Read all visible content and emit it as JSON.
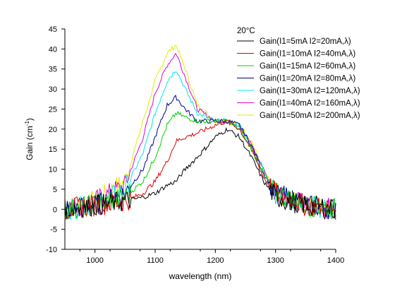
{
  "chart_data": {
    "type": "line",
    "title": "20°C",
    "xlabel": "wavelength (nm)",
    "ylabel": "Gain (cm",
    "ylabel_sup": "-1",
    "ylabel_end": ")",
    "xlim": [
      950,
      1400
    ],
    "ylim": [
      -10,
      45
    ],
    "xticks": [
      1000,
      1100,
      1200,
      1300,
      1400
    ],
    "xtick_labels": [
      "1000",
      "1100",
      "1200",
      "1300",
      "1400"
    ],
    "yticks": [
      -10,
      -5,
      0,
      5,
      10,
      15,
      20,
      25,
      30,
      35,
      40,
      45
    ],
    "ytick_labels": [
      "-10",
      "-5",
      "0",
      "5",
      "10",
      "15",
      "20",
      "25",
      "30",
      "35",
      "40",
      "45"
    ],
    "grid": false,
    "legend_position": "top-right",
    "x": [
      950,
      1000,
      1050,
      1080,
      1100,
      1120,
      1135,
      1150,
      1170,
      1200,
      1220,
      1240,
      1260,
      1280,
      1300,
      1350,
      1400
    ],
    "series": [
      {
        "name": "Gain(I1=5mA I2=20mA,λ)",
        "color": "#000000",
        "values": [
          0,
          1,
          2,
          3,
          4,
          6,
          7,
          10,
          13,
          18,
          20,
          18,
          13,
          7,
          3,
          1,
          0
        ]
      },
      {
        "name": "Gain(I1=10mA I2=40mA,λ)",
        "color": "#e00000",
        "values": [
          0,
          1,
          2,
          4,
          7,
          12,
          17,
          18,
          19,
          21,
          22,
          20,
          15,
          8,
          4,
          1,
          0
        ]
      },
      {
        "name": "Gain(I1=15mA I2=60mA,λ)",
        "color": "#00d000",
        "values": [
          0,
          1,
          3,
          7,
          13,
          21,
          24,
          23,
          22,
          22,
          22,
          20,
          15,
          9,
          4,
          1,
          0
        ]
      },
      {
        "name": "Gain(I1=20mA I2=80mA,λ)",
        "color": "#00008b",
        "values": [
          0,
          1,
          4,
          10,
          18,
          26,
          28,
          25,
          22,
          22,
          22,
          21,
          16,
          9,
          4,
          1,
          0
        ]
      },
      {
        "name": "Gain(I1=30mA I2=120mA,λ)",
        "color": "#00e8e8",
        "values": [
          0,
          1,
          5,
          14,
          24,
          32,
          35,
          30,
          24,
          22,
          22,
          21,
          16,
          10,
          4,
          1,
          0
        ]
      },
      {
        "name": "Gain(I1=40mA I2=160mA,λ)",
        "color": "#e000e0",
        "values": [
          0,
          2,
          6,
          18,
          29,
          36,
          39,
          33,
          25,
          22,
          22,
          21,
          16,
          10,
          4,
          1,
          0
        ]
      },
      {
        "name": "Gain(I1=50mA I2=200mA,λ)",
        "color": "#e8e800",
        "values": [
          0,
          2,
          7,
          22,
          32,
          39,
          41,
          35,
          26,
          22,
          22,
          21,
          17,
          10,
          4,
          1,
          0
        ]
      }
    ]
  }
}
